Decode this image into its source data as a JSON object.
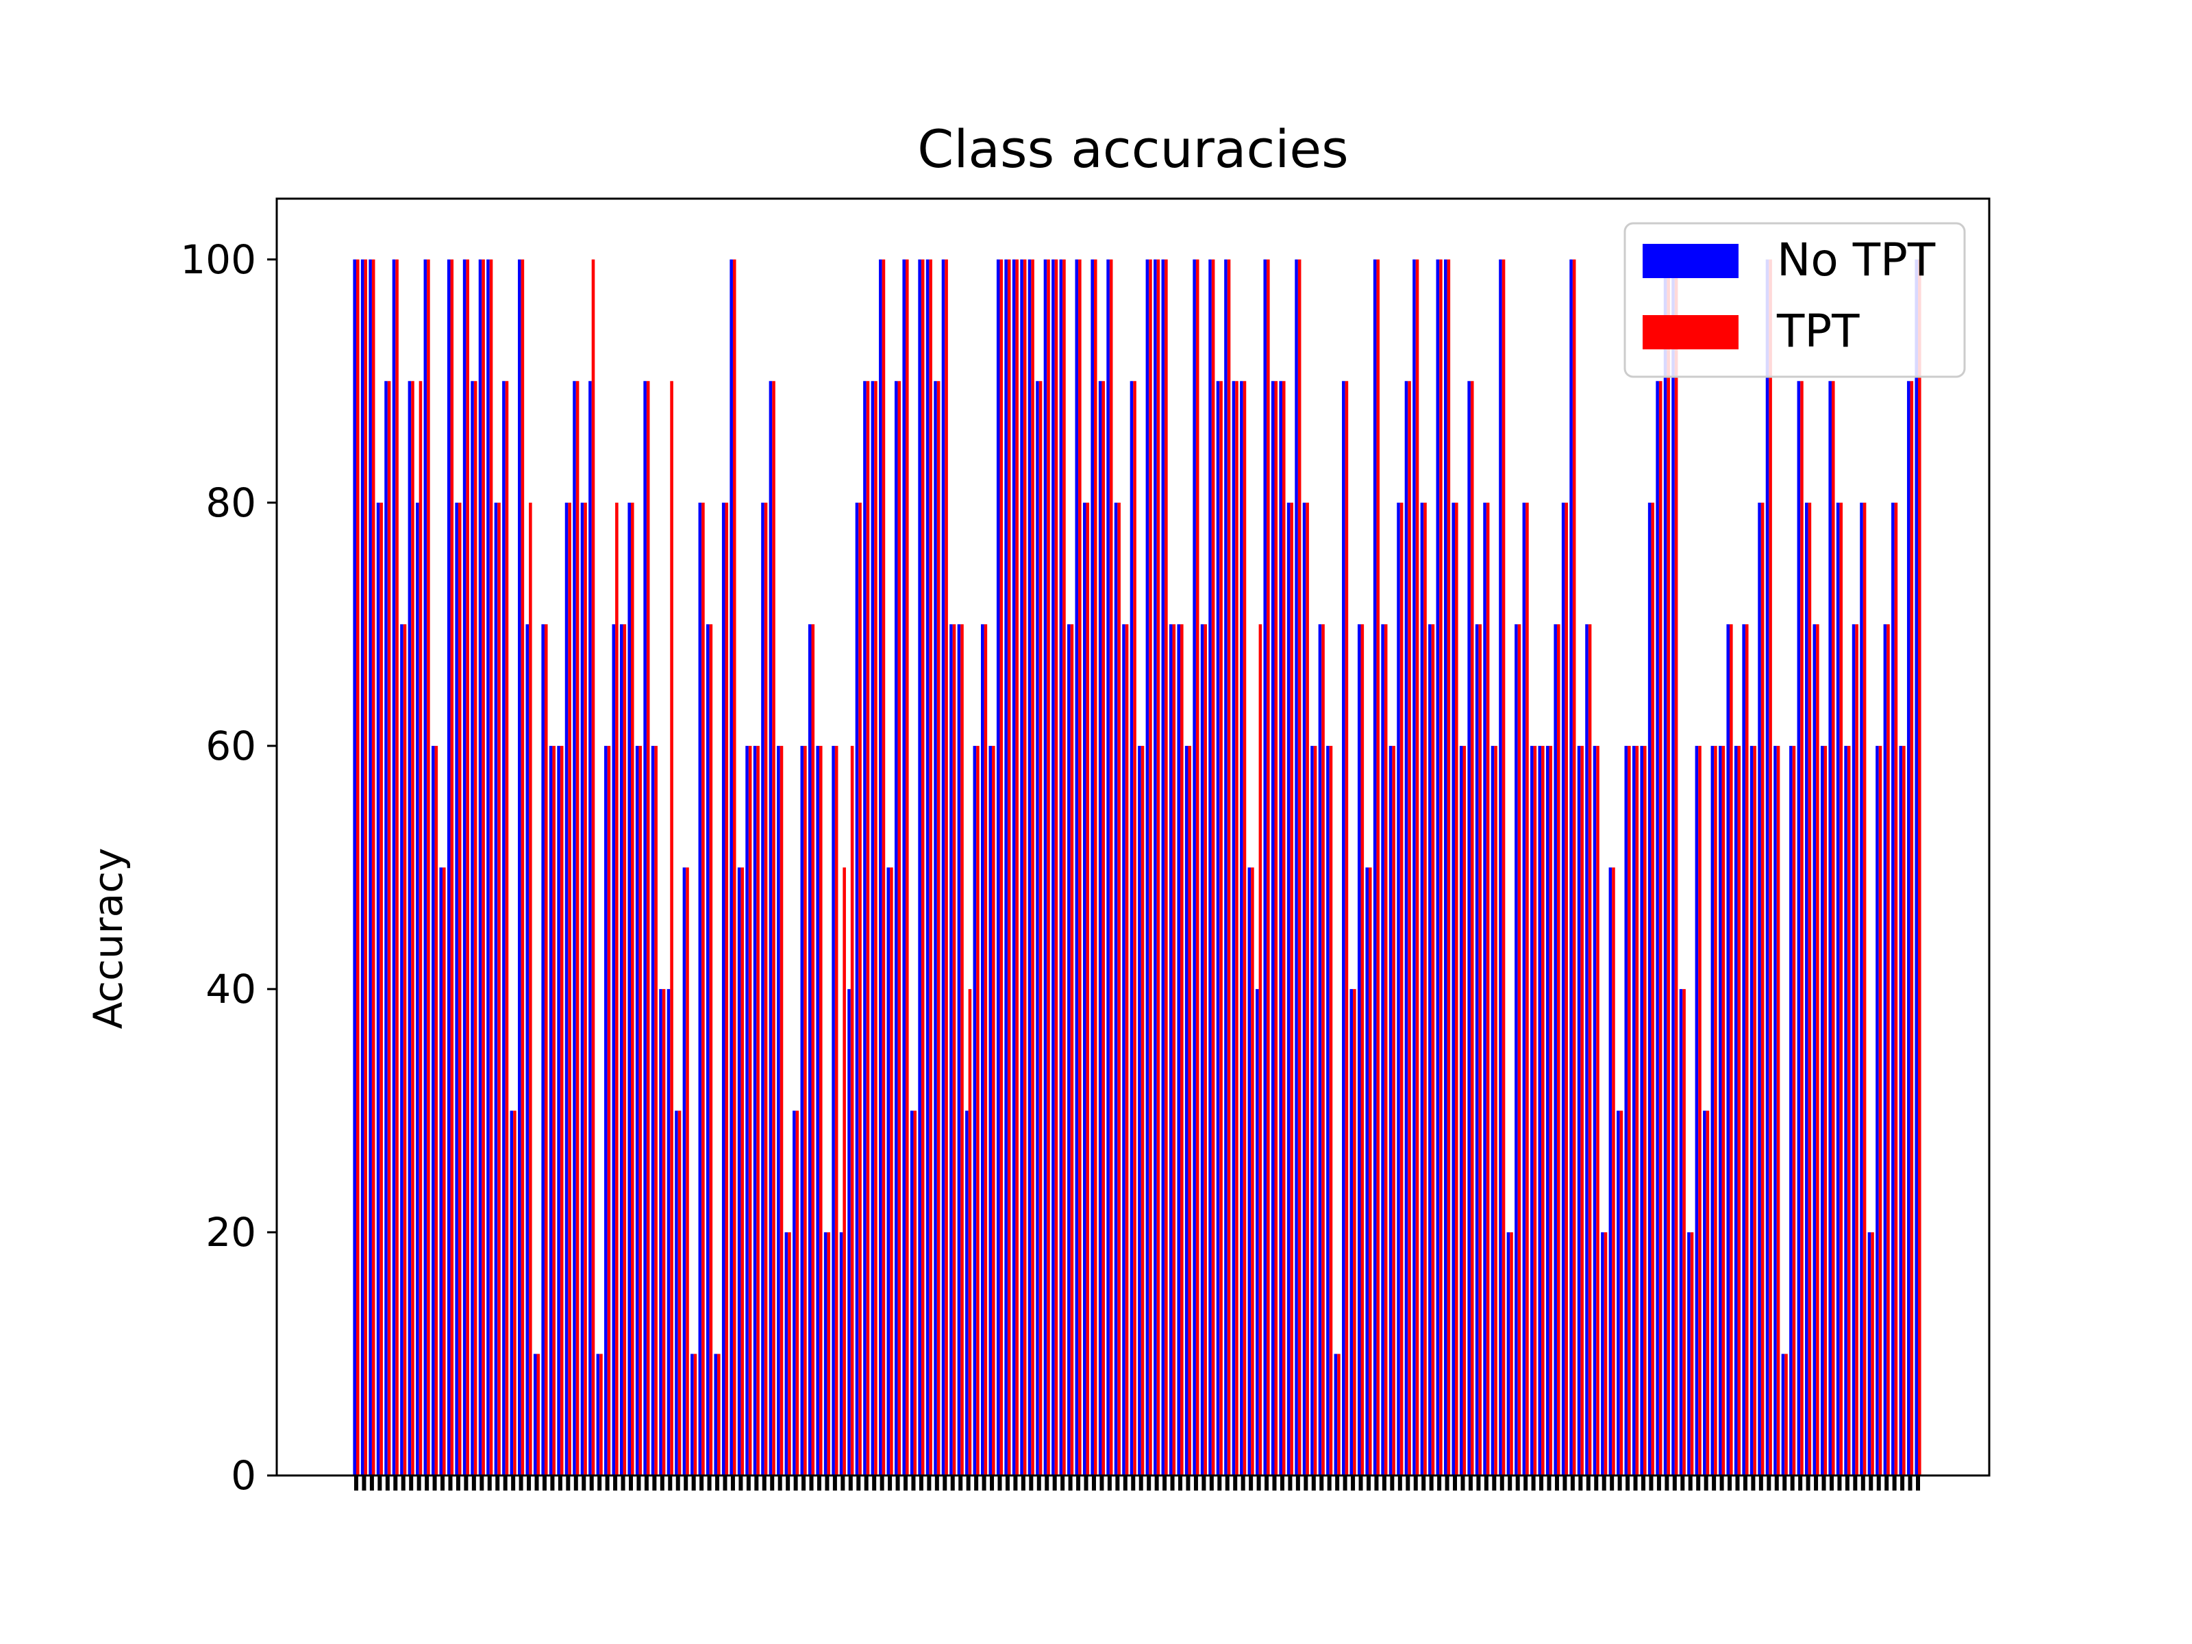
{
  "chart_data": {
    "type": "bar",
    "title": "Class accuracies",
    "xlabel": "",
    "ylabel": "Accuracy",
    "ylim": [
      0,
      105
    ],
    "yticks": [
      0,
      20,
      40,
      60,
      80,
      100
    ],
    "num_classes": 200,
    "legend": {
      "placement": "top-right"
    },
    "colors": {
      "No TPT": "#0000ff",
      "TPT": "#ff0000"
    },
    "series": [
      {
        "name": "No TPT",
        "values": [
          100,
          100,
          100,
          80,
          90,
          100,
          70,
          90,
          80,
          100,
          60,
          50,
          100,
          80,
          100,
          90,
          100,
          100,
          80,
          90,
          30,
          100,
          70,
          10,
          70,
          60,
          60,
          80,
          90,
          80,
          90,
          10,
          60,
          70,
          70,
          80,
          60,
          90,
          60,
          40,
          40,
          30,
          50,
          10,
          80,
          70,
          10,
          80,
          100,
          50,
          60,
          60,
          80,
          90,
          60,
          20,
          30,
          60,
          70,
          60,
          20,
          60,
          20,
          40,
          80,
          90,
          90,
          100,
          50,
          90,
          100,
          30,
          100,
          100,
          90,
          100,
          70,
          70,
          30,
          60,
          70,
          60,
          100,
          100,
          100,
          100,
          100,
          90,
          100,
          100,
          100,
          70,
          100,
          80,
          100,
          90,
          100,
          80,
          70,
          90,
          60,
          100,
          100,
          100,
          70,
          70,
          60,
          100,
          70,
          100,
          90,
          100,
          90,
          90,
          50,
          40,
          100,
          90,
          90,
          80,
          100,
          80,
          60,
          70,
          60,
          10,
          90,
          40,
          70,
          50,
          100,
          70,
          60,
          80,
          90,
          100,
          80,
          70,
          100,
          100,
          80,
          60,
          90,
          70,
          80,
          60,
          100,
          20,
          70,
          80,
          60,
          60,
          60,
          70,
          80,
          100,
          60,
          70,
          60,
          20,
          50,
          30,
          60,
          60,
          60,
          80,
          90,
          100,
          100,
          40,
          20,
          60,
          30,
          60,
          60,
          70,
          60,
          70,
          60,
          80,
          100,
          60,
          10,
          60,
          90,
          80,
          70,
          60,
          90,
          80,
          60,
          70,
          80,
          20,
          60,
          70,
          80,
          60,
          90,
          100
        ]
      },
      {
        "name": "TPT",
        "values": [
          100,
          100,
          100,
          80,
          90,
          100,
          70,
          90,
          90,
          100,
          60,
          50,
          100,
          80,
          100,
          90,
          100,
          100,
          80,
          90,
          30,
          100,
          80,
          10,
          70,
          60,
          60,
          80,
          90,
          80,
          100,
          10,
          60,
          80,
          70,
          80,
          60,
          90,
          60,
          40,
          90,
          30,
          50,
          10,
          80,
          70,
          10,
          80,
          100,
          50,
          60,
          60,
          80,
          90,
          60,
          20,
          30,
          60,
          70,
          60,
          20,
          60,
          50,
          60,
          80,
          90,
          90,
          100,
          50,
          90,
          100,
          30,
          100,
          100,
          90,
          100,
          70,
          70,
          40,
          60,
          70,
          60,
          100,
          100,
          100,
          100,
          100,
          90,
          100,
          100,
          100,
          70,
          100,
          80,
          100,
          90,
          100,
          80,
          70,
          90,
          60,
          100,
          100,
          100,
          70,
          70,
          60,
          100,
          70,
          100,
          90,
          100,
          90,
          90,
          50,
          70,
          100,
          90,
          90,
          80,
          100,
          80,
          60,
          70,
          60,
          10,
          90,
          40,
          70,
          50,
          100,
          70,
          60,
          80,
          90,
          100,
          80,
          70,
          100,
          100,
          80,
          60,
          90,
          70,
          80,
          60,
          100,
          20,
          70,
          80,
          60,
          60,
          60,
          70,
          80,
          100,
          60,
          70,
          60,
          20,
          50,
          30,
          60,
          60,
          60,
          80,
          90,
          100,
          100,
          40,
          20,
          60,
          30,
          60,
          60,
          70,
          60,
          70,
          60,
          80,
          100,
          60,
          10,
          60,
          90,
          80,
          70,
          60,
          90,
          80,
          60,
          70,
          80,
          20,
          60,
          70,
          80,
          60,
          90,
          100
        ]
      }
    ]
  }
}
